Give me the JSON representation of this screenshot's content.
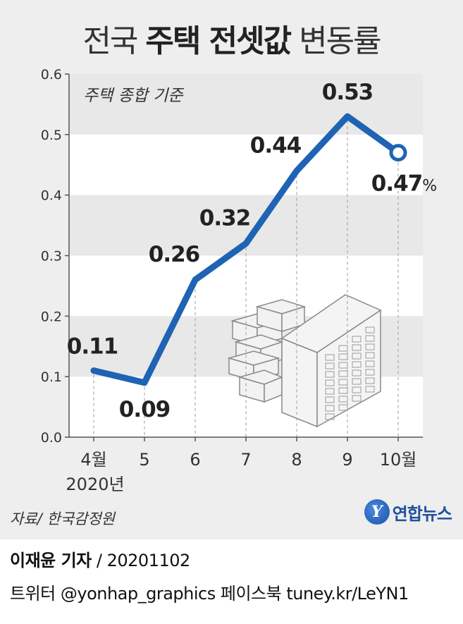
{
  "title": {
    "light_prefix": "전국 ",
    "bold": "주택 전셋값",
    "light_suffix": " 변동률"
  },
  "chart_data": {
    "type": "line",
    "subtitle": "주택 종합 기준",
    "categories": [
      "4월",
      "5",
      "6",
      "7",
      "8",
      "9",
      "10월"
    ],
    "year_label": "2020년",
    "values": [
      0.11,
      0.09,
      0.26,
      0.32,
      0.44,
      0.53,
      0.47
    ],
    "data_labels": [
      "0.11",
      "0.09",
      "0.26",
      "0.32",
      "0.44",
      "0.53",
      "0.47"
    ],
    "last_label_unit": "%",
    "y_ticks": [
      "0.0",
      "0.1",
      "0.2",
      "0.3",
      "0.4",
      "0.5",
      "0.6"
    ],
    "ylim": [
      0,
      0.6
    ],
    "grid_bands": true,
    "colors": {
      "line": "#1f63b5",
      "band": "#e8e8e8",
      "plot_bg": "#ffffff",
      "panel": "#eeeeee"
    }
  },
  "source": "자료/ 한국감정원",
  "logo": {
    "text": "연합뉴스",
    "mark": "Y",
    "icon": "yonhap-logo-icon"
  },
  "credit": {
    "name": "이재윤 기자",
    "date": " / 20201102",
    "line2": "트위터 @yonhap_graphics  페이스북 tuney.kr/LeYN1"
  }
}
